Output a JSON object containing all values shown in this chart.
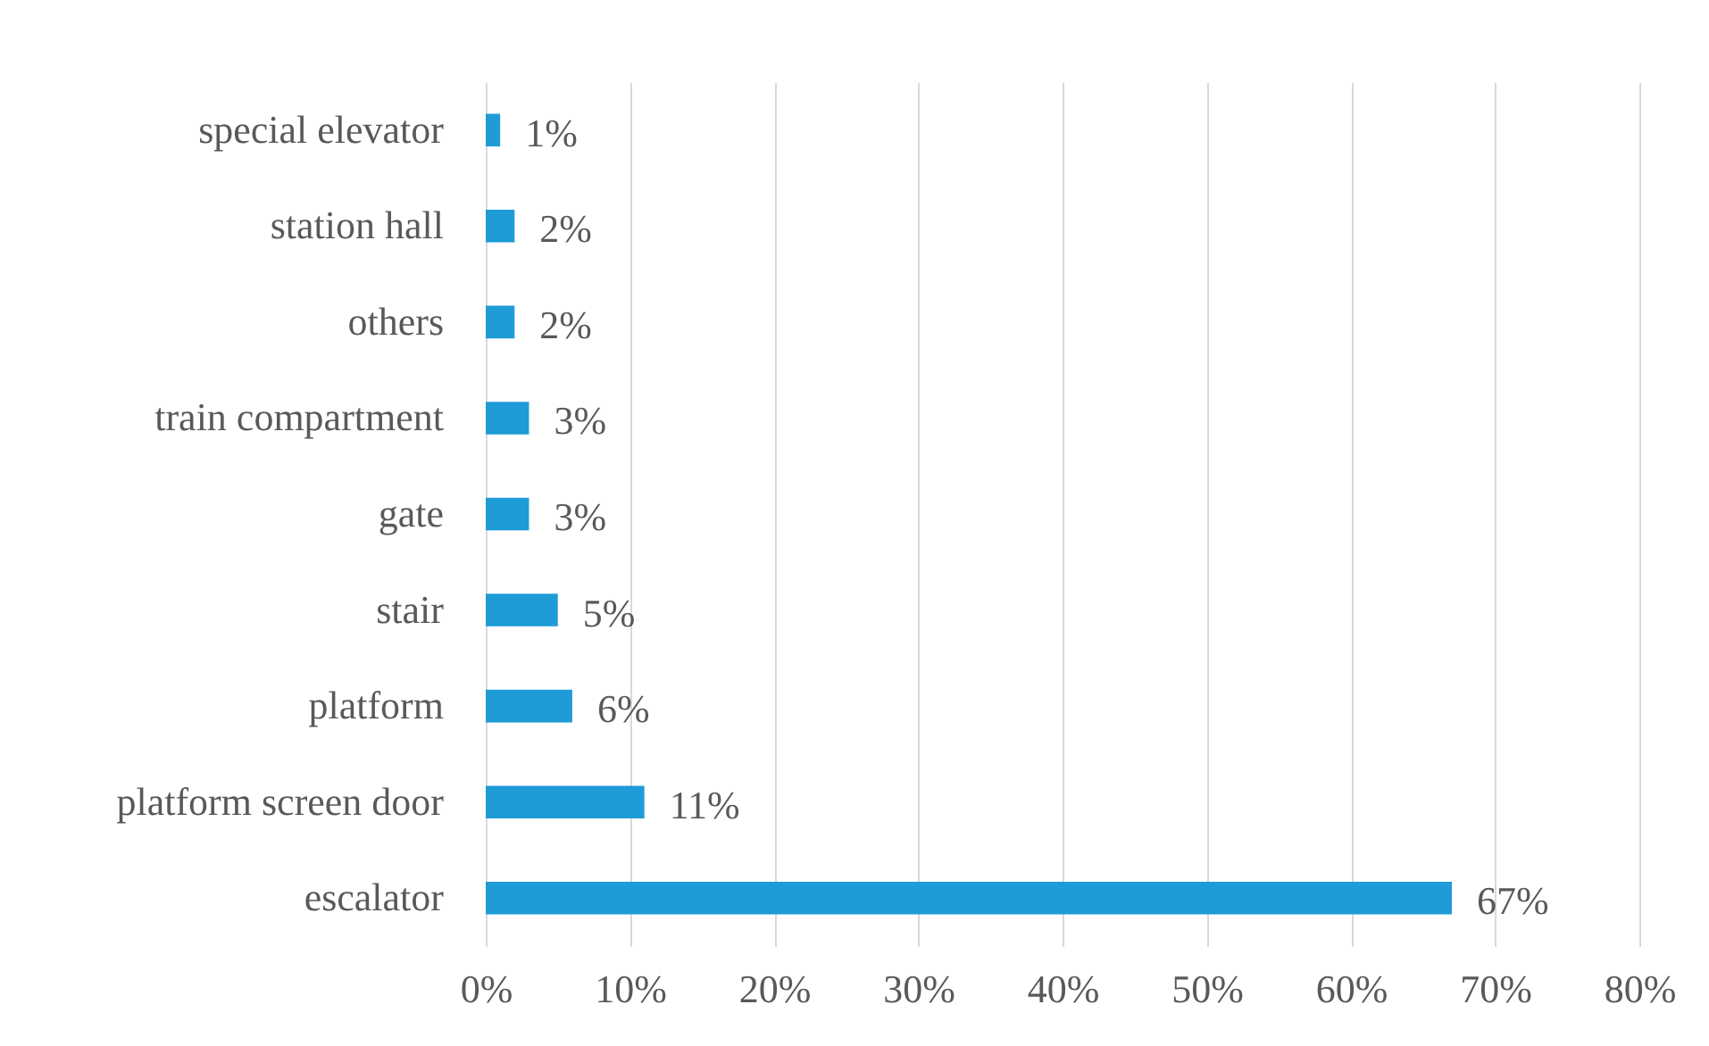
{
  "chart_data": {
    "type": "bar",
    "orientation": "horizontal",
    "categories": [
      "special elevator",
      "station hall",
      "others",
      "train compartment",
      "gate",
      "stair",
      "platform",
      "platform screen door",
      "escalator"
    ],
    "values": [
      1,
      2,
      2,
      3,
      3,
      5,
      6,
      11,
      67
    ],
    "value_labels": [
      "1%",
      "2%",
      "2%",
      "3%",
      "3%",
      "5%",
      "6%",
      "11%",
      "67%"
    ],
    "color": "#1f9bd7",
    "xlim": [
      0,
      80
    ],
    "xticks": [
      {
        "value": 0,
        "label": "0%"
      },
      {
        "value": 10,
        "label": "10%"
      },
      {
        "value": 20,
        "label": "20%"
      },
      {
        "value": 30,
        "label": "30%"
      },
      {
        "value": 40,
        "label": "40%"
      },
      {
        "value": 50,
        "label": "50%"
      },
      {
        "value": 60,
        "label": "60%"
      },
      {
        "value": 70,
        "label": "70%"
      },
      {
        "value": 80,
        "label": "80%"
      }
    ],
    "grid": "x"
  }
}
